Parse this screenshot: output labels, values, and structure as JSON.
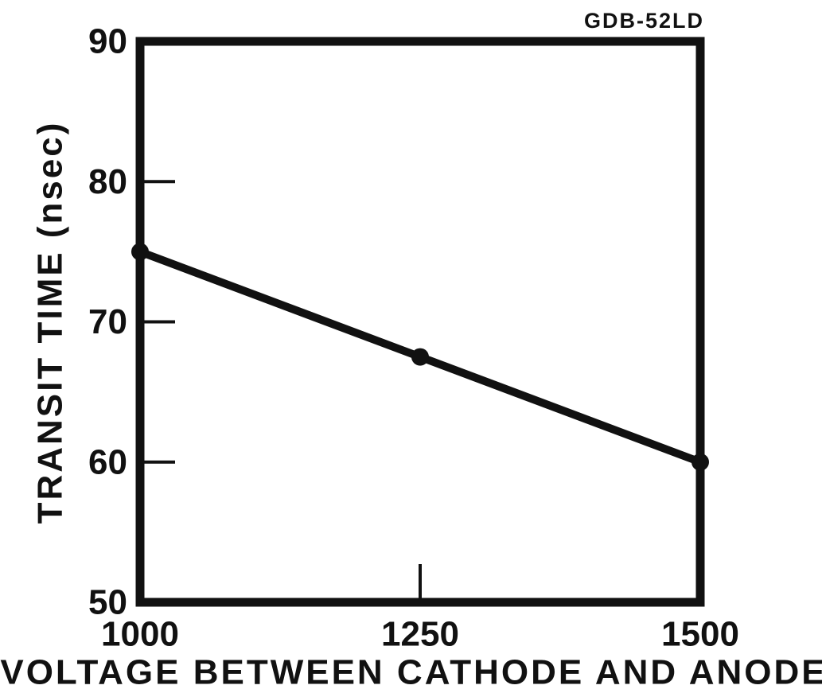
{
  "chart_data": {
    "type": "line",
    "title": "GDB-52LD",
    "x_label": "VOLTAGE BETWEEN CATHODE AND ANODE",
    "y_label": "TRANSIT TIME (nsec)",
    "x": [
      1000,
      1250,
      1500
    ],
    "values": [
      75,
      67.5,
      60
    ],
    "color": "#111111",
    "xlim": [
      1000,
      1500
    ],
    "xticks": [
      1000,
      1250,
      1500
    ],
    "ylim": [
      50,
      90
    ],
    "yticks": [
      50,
      60,
      70,
      80,
      90
    ],
    "grid": false
  }
}
